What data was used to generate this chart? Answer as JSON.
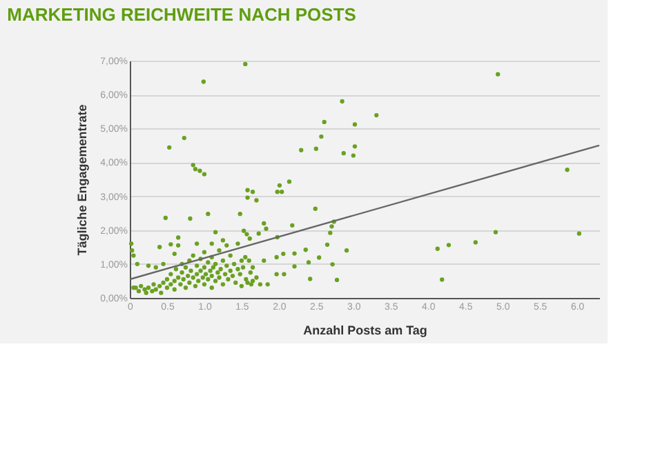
{
  "chart_data": {
    "type": "scatter",
    "title": "MARKETING REICHWEITE NACH POSTS",
    "xlabel": "Anzahl Posts am Tag",
    "ylabel": "Tägliche Engagementrate",
    "xlim": [
      0,
      6.3
    ],
    "ylim": [
      0,
      7
    ],
    "xticks": [
      0,
      {
        "value": 0.5,
        "label": "0.5"
      },
      {
        "value": 1,
        "label": "1.0"
      },
      {
        "value": 1.5,
        "label": "1.5"
      },
      {
        "value": 2,
        "label": "2.0"
      },
      {
        "value": 2.5,
        "label": "2.5"
      },
      {
        "value": 3,
        "label": "3.0"
      },
      {
        "value": 3.5,
        "label": "3.5"
      },
      {
        "value": 4,
        "label": "4.0"
      },
      {
        "value": 4.5,
        "label": "4.5"
      },
      {
        "value": 5,
        "label": "5.0"
      },
      {
        "value": 5.5,
        "label": "5.5"
      },
      {
        "value": 6,
        "label": "6.0"
      }
    ],
    "yticks": [
      {
        "value": 0,
        "label": "0,00%"
      },
      {
        "value": 1,
        "label": "1,00%"
      },
      {
        "value": 2,
        "label": "2,00%"
      },
      {
        "value": 3,
        "label": "3,00%"
      },
      {
        "value": 4,
        "label": "4,00%"
      },
      {
        "value": 5,
        "label": "5,00%"
      },
      {
        "value": 6,
        "label": "6,00%"
      },
      {
        "value": 7,
        "label": "7,00%"
      }
    ],
    "grid": "y",
    "marker": "circle",
    "series": [
      {
        "color": "#6aa121",
        "x": [
          1.55,
          0.99,
          0.73,
          0.53,
          0.85,
          0.88,
          0.94,
          1.0,
          1.58,
          1.65,
          1.58,
          1.7,
          0.48,
          0.81,
          1.05,
          1.48,
          1.15,
          1.53,
          1.57,
          1.61,
          1.73,
          1.83,
          1.8,
          0.02,
          0.03,
          0.05,
          0.4,
          0.55,
          0.65,
          1.55,
          1.6,
          1.65,
          1.62,
          1.7,
          1.56,
          1.65,
          1.63,
          1.58,
          1.75,
          1.85,
          1.97,
          1.8,
          1.97,
          2.85,
          2.61,
          3.02,
          3.31,
          2.57,
          2.3,
          2.5,
          2.87,
          3.0,
          3.02,
          2.01,
          2.14,
          1.98,
          2.04,
          2.49,
          2.74,
          2.71,
          2.69,
          2.65,
          1.98,
          2.18,
          2.06,
          2.21,
          2.36,
          2.91,
          2.54,
          2.4,
          2.21,
          2.72,
          2.07,
          2.42,
          2.78,
          4.94,
          5.87,
          4.13,
          4.28,
          4.64,
          4.91,
          6.03,
          4.19,
          0.08,
          0.12,
          0.15,
          0.2,
          0.22,
          0.25,
          0.3,
          0.32,
          0.35,
          0.4,
          0.42,
          0.45,
          0.5,
          0.5,
          0.55,
          0.55,
          0.6,
          0.6,
          0.62,
          0.65,
          0.68,
          0.7,
          0.7,
          0.72,
          0.75,
          0.75,
          0.78,
          0.8,
          0.8,
          0.82,
          0.85,
          0.85,
          0.88,
          0.9,
          0.9,
          0.92,
          0.95,
          0.95,
          0.98,
          1.0,
          1.0,
          1.0,
          1.02,
          1.05,
          1.05,
          1.08,
          1.1,
          1.1,
          1.1,
          1.12,
          1.15,
          1.15,
          1.18,
          1.2,
          1.2,
          1.22,
          1.25,
          1.25,
          1.28,
          1.3,
          1.3,
          1.32,
          1.35,
          1.35,
          1.38,
          1.4,
          1.42,
          1.45,
          1.45,
          1.48,
          1.5,
          1.5,
          1.52,
          0.05,
          0.1,
          0.25,
          0.35,
          0.45,
          0.6,
          0.65,
          0.9,
          1.1,
          1.25
        ],
        "values": [
          6.9,
          6.38,
          4.72,
          4.44,
          3.92,
          3.8,
          3.75,
          3.65,
          3.18,
          3.13,
          2.96,
          2.88,
          2.36,
          2.34,
          2.48,
          2.48,
          1.94,
          1.98,
          1.88,
          1.75,
          1.9,
          2.04,
          2.2,
          1.6,
          1.4,
          1.25,
          1.5,
          1.58,
          1.78,
          1.2,
          1.1,
          0.9,
          0.75,
          0.6,
          0.55,
          0.5,
          0.4,
          0.45,
          0.4,
          0.4,
          0.7,
          1.1,
          1.2,
          5.8,
          5.19,
          5.12,
          5.39,
          4.76,
          4.36,
          4.4,
          4.27,
          4.2,
          4.47,
          3.32,
          3.43,
          3.13,
          3.13,
          2.63,
          2.25,
          2.11,
          1.92,
          1.57,
          1.79,
          2.14,
          1.3,
          1.31,
          1.42,
          1.4,
          1.19,
          1.05,
          0.93,
          0.99,
          0.7,
          0.56,
          0.53,
          6.6,
          3.78,
          1.45,
          1.56,
          1.64,
          1.94,
          1.9,
          0.54,
          0.3,
          0.2,
          0.35,
          0.25,
          0.15,
          0.3,
          0.2,
          0.4,
          0.25,
          0.35,
          0.15,
          0.45,
          0.3,
          0.55,
          0.4,
          0.7,
          0.5,
          0.25,
          0.85,
          0.6,
          0.4,
          0.75,
          1.0,
          0.55,
          0.3,
          0.9,
          0.65,
          1.1,
          0.45,
          0.8,
          0.6,
          1.25,
          0.35,
          0.7,
          0.95,
          0.5,
          0.8,
          1.15,
          0.6,
          0.4,
          0.9,
          1.35,
          0.7,
          0.55,
          1.05,
          0.8,
          0.3,
          0.65,
          1.2,
          0.9,
          0.5,
          1.0,
          0.75,
          1.4,
          0.6,
          0.85,
          0.4,
          1.1,
          0.7,
          0.95,
          1.55,
          0.55,
          0.8,
          1.25,
          0.65,
          1.0,
          0.45,
          0.85,
          1.6,
          0.7,
          1.1,
          0.35,
          0.9,
          0.3,
          1.0,
          0.95,
          0.9,
          1.0,
          1.3,
          1.55,
          1.6,
          1.6,
          1.7
        ]
      },
      {
        "type": "line",
        "marker": "none",
        "line_style": "solid",
        "color": "#666666",
        "x": [
          0,
          6.3
        ],
        "values": [
          0.55,
          4.5
        ]
      }
    ]
  }
}
